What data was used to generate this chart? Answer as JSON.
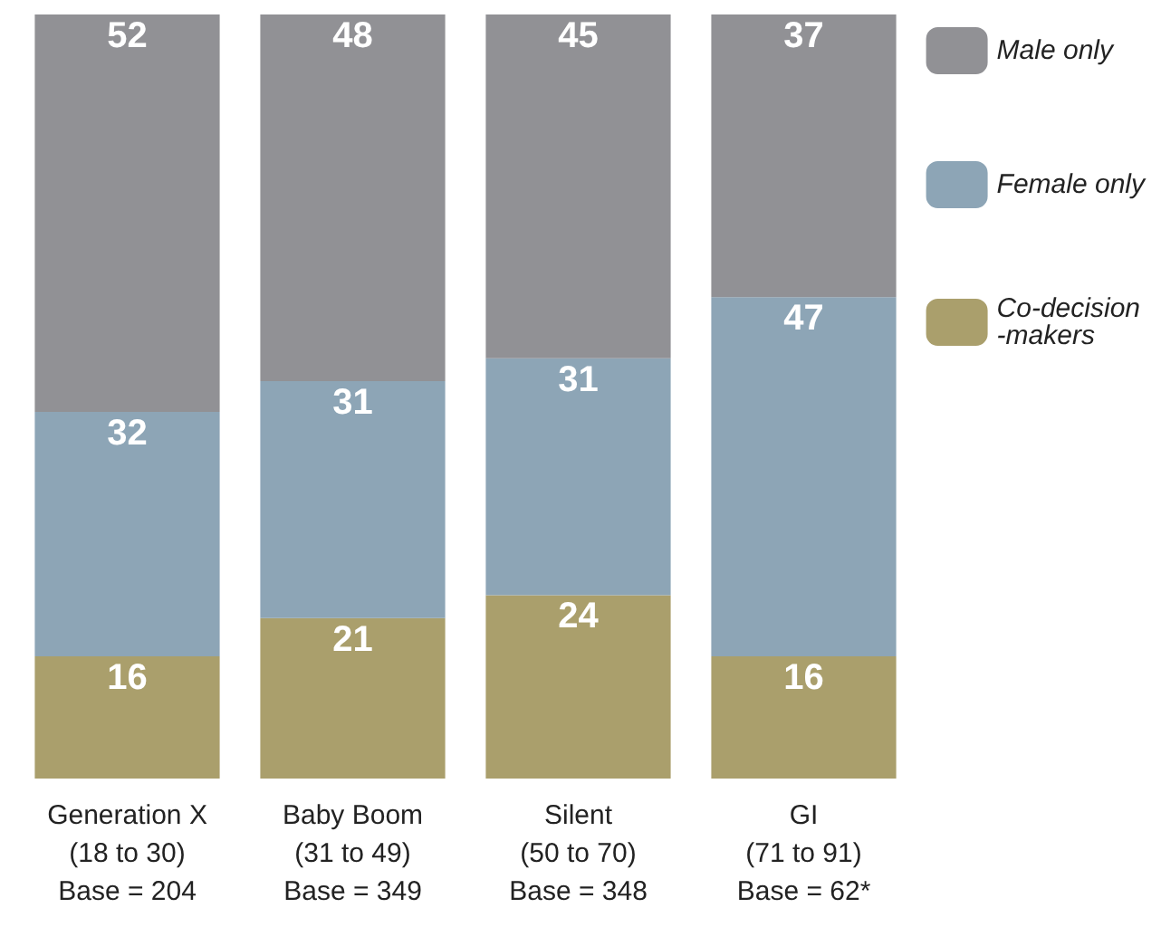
{
  "chart_data": {
    "type": "bar",
    "stacked": true,
    "data_labels": true,
    "legend": "right",
    "categories": [
      "Generation X\n(18 to 30)\nBase = 204",
      "Baby Boom\n(31 to 49)\nBase = 349",
      "Silent\n(50 to 70)\nBase = 348",
      "GI\n(71 to 91)\nBase = 62*"
    ],
    "series": [
      {
        "name": "Co-decision-makers",
        "color": "#aa9f6c",
        "values": [
          16,
          21,
          24,
          16
        ]
      },
      {
        "name": "Female only",
        "color": "#8da5b6",
        "values": [
          32,
          31,
          31,
          47
        ]
      },
      {
        "name": "Male only",
        "color": "#919195",
        "values": [
          52,
          48,
          45,
          37
        ]
      }
    ]
  }
}
